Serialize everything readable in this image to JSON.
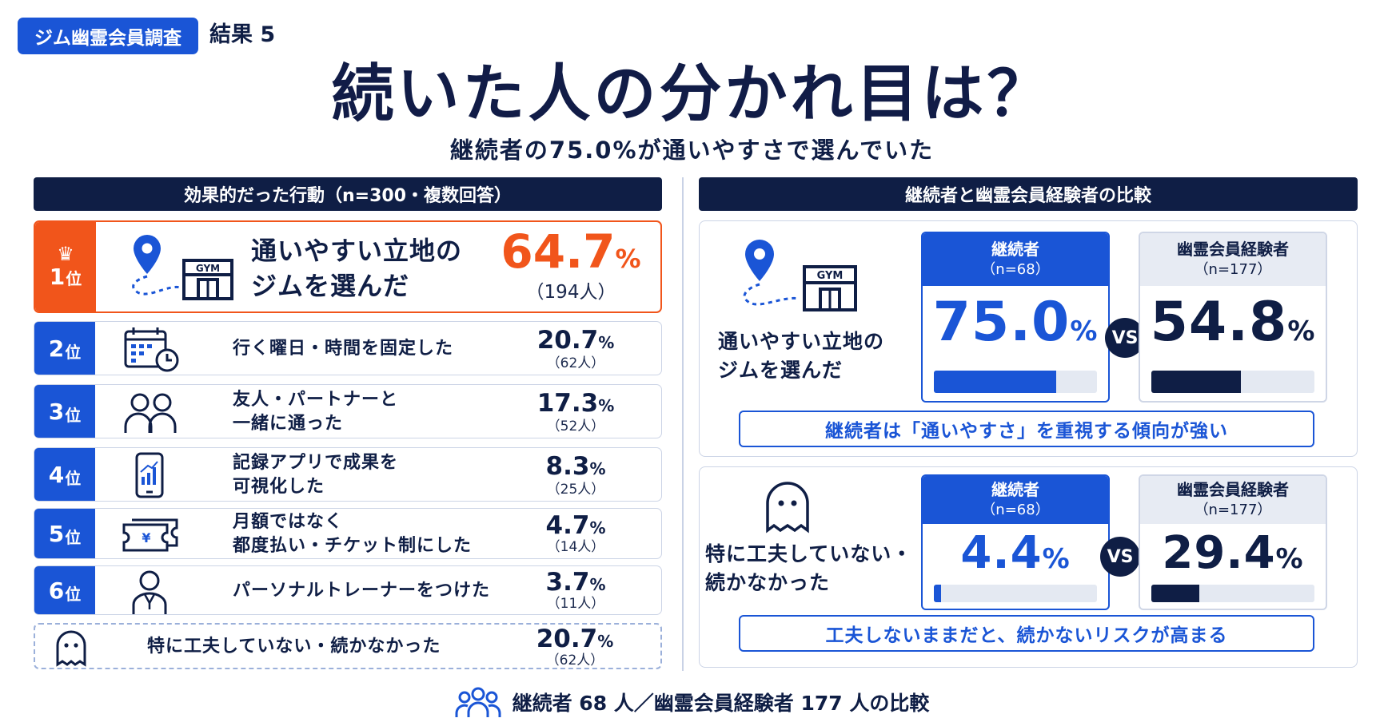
{
  "header": {
    "badge": "ジム幽霊会員調査",
    "result_label": "結果 5",
    "title": "続いた人の分かれ目は？",
    "subtitle": "継続者の75.0%が通いやすさで選んでいた"
  },
  "left_header": "効果的だった行動（n=300・複数回答）",
  "right_header": "継続者と幽霊会員経験者の比較",
  "ranking": [
    {
      "rank": "1",
      "rank_unit": "位",
      "icon": "location-gym-icon",
      "label": "通いやすい立地の\nジムを選んだ",
      "value": "64.7",
      "unit": "%",
      "count": "（194人）"
    },
    {
      "rank": "2",
      "rank_unit": "位",
      "icon": "calendar-clock-icon",
      "label": "行く曜日・時間を固定した",
      "value": "20.7",
      "unit": "%",
      "count": "（62人）"
    },
    {
      "rank": "3",
      "rank_unit": "位",
      "icon": "people-icon",
      "label": "友人・パートナーと\n一緒に通った",
      "value": "17.3",
      "unit": "%",
      "count": "（52人）"
    },
    {
      "rank": "4",
      "rank_unit": "位",
      "icon": "smartphone-chart-icon",
      "label": "記録アプリで成果を\n可視化した",
      "value": "8.3",
      "unit": "%",
      "count": "（25人）"
    },
    {
      "rank": "5",
      "rank_unit": "位",
      "icon": "ticket-yen-icon",
      "label": "月額ではなく\n都度払い・チケット制にした",
      "value": "4.7",
      "unit": "%",
      "count": "（14人）"
    },
    {
      "rank": "6",
      "rank_unit": "位",
      "icon": "trainer-icon",
      "label": "パーソナルトレーナーをつけた",
      "value": "3.7",
      "unit": "%",
      "count": "（11人）"
    }
  ],
  "no_effort": {
    "icon": "ghost-icon",
    "label": "特に工夫していない・続かなかった",
    "value": "20.7",
    "unit": "%",
    "count": "（62人）"
  },
  "compare": [
    {
      "icon": "location-gym-icon",
      "label": "通いやすい立地の\nジムを選んだ",
      "a_name": "継続者",
      "a_n": "（n=68）",
      "a_value": "75.0",
      "a_unit": "%",
      "b_name": "幽霊会員経験者",
      "b_n": "（n=177）",
      "b_value": "54.8",
      "b_unit": "%",
      "vs": "VS",
      "note": "継続者は「通いやすさ」を重視する傾向が強い"
    },
    {
      "icon": "ghost-icon",
      "label": "特に工夫していない・\n続かなかった",
      "a_name": "継続者",
      "a_n": "（n=68）",
      "a_value": "4.4",
      "a_unit": "%",
      "b_name": "幽霊会員経験者",
      "b_n": "（n=177）",
      "b_value": "29.4",
      "b_unit": "%",
      "vs": "VS",
      "note": "工夫しないままだと、続かないリスクが高まる"
    }
  ],
  "gym_sign": "GYM",
  "footer": "継続者 68 人／幽霊会員経験者 177 人の比較",
  "colors": {
    "blue": "#1a55d6",
    "navy": "#0f1e45",
    "orange": "#f1551b"
  },
  "chart_data": [
    {
      "type": "table",
      "title": "効果的だった行動（n=300・複数回答）",
      "categories": [
        "通いやすい立地のジムを選んだ",
        "行く曜日・時間を固定した",
        "友人・パートナーと一緒に通った",
        "記録アプリで成果を可視化した",
        "月額ではなく都度払い・チケット制にした",
        "パーソナルトレーナーをつけた",
        "特に工夫していない・続かなかった"
      ],
      "values": [
        64.7,
        20.7,
        17.3,
        8.3,
        4.7,
        3.7,
        20.7
      ],
      "counts": [
        194,
        62,
        52,
        25,
        14,
        11,
        62
      ]
    },
    {
      "type": "bar",
      "title": "継続者と幽霊会員経験者の比較",
      "categories": [
        "通いやすい立地のジムを選んだ",
        "特に工夫していない・続かなかった"
      ],
      "series": [
        {
          "name": "継続者",
          "values": [
            75.0,
            4.4
          ]
        },
        {
          "name": "幽霊会員経験者",
          "values": [
            54.8,
            29.4
          ]
        }
      ],
      "ylim": [
        0,
        100
      ]
    }
  ]
}
